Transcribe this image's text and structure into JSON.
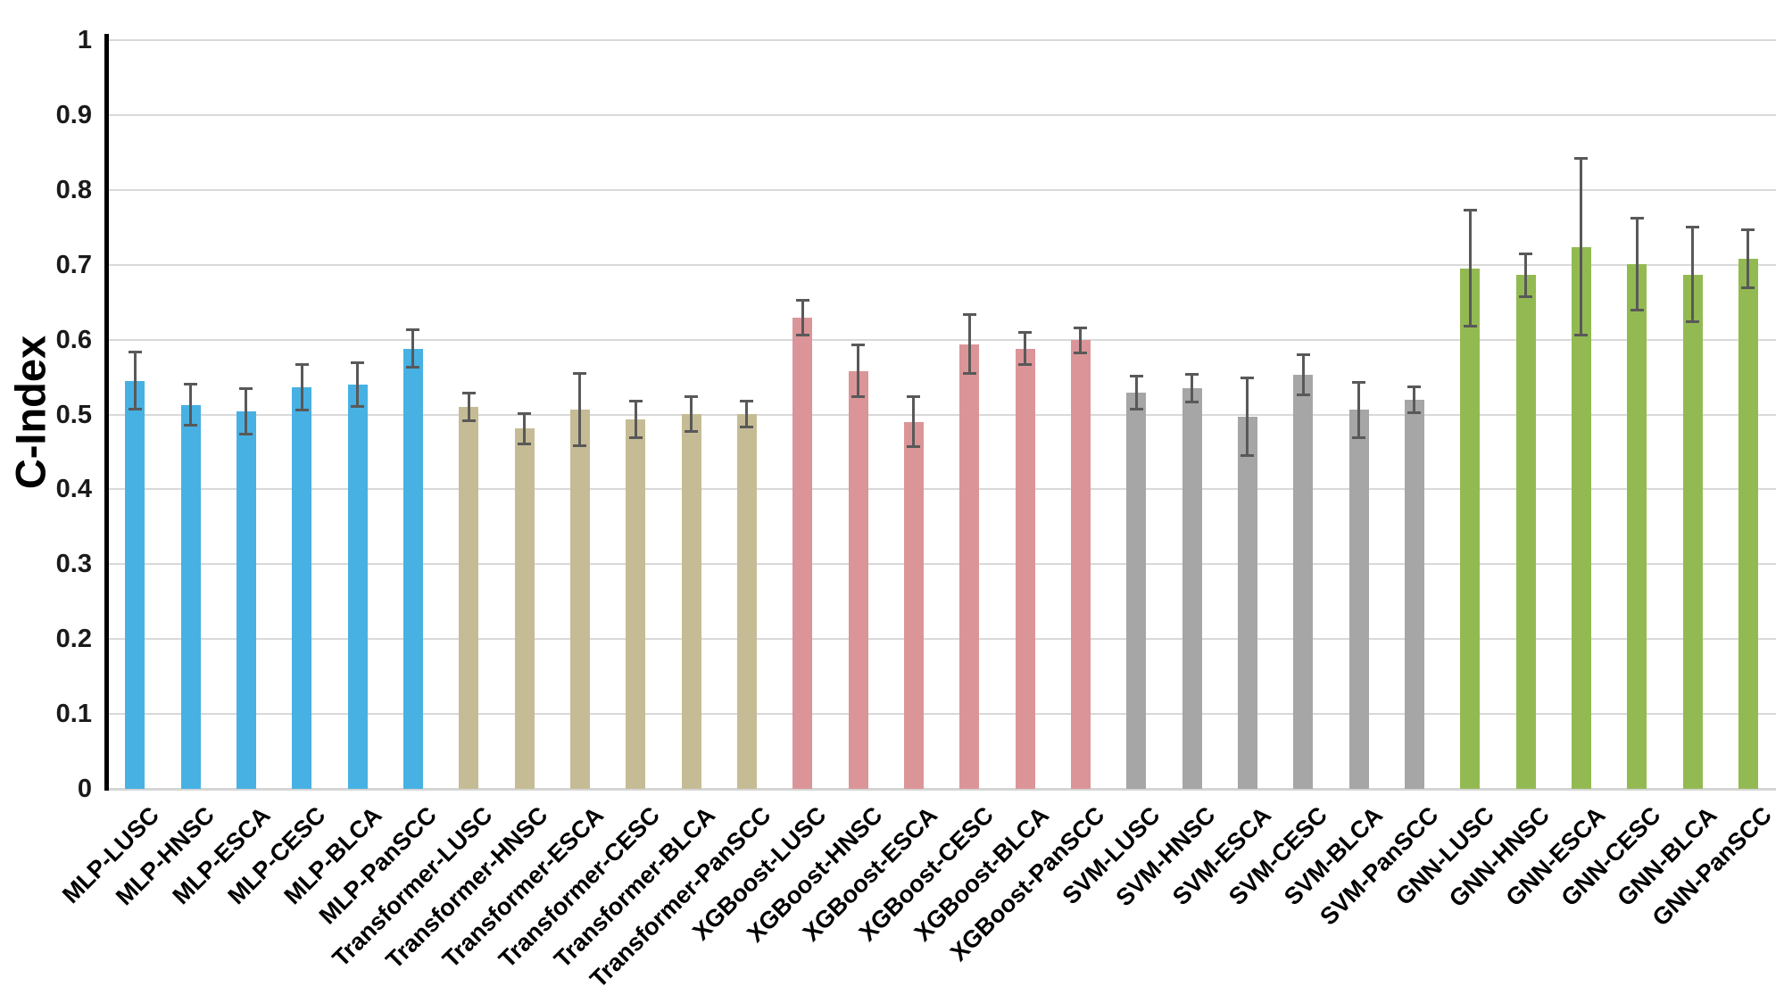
{
  "chart_data": {
    "type": "bar",
    "ylabel": "C-Index",
    "ylim": [
      0,
      1
    ],
    "grid": true,
    "legend_position": "none",
    "error_bars": true,
    "colors": {
      "axis": "#000000",
      "gridline": "#d9d9d9",
      "error_bar": "#595959"
    },
    "yticks": [
      {
        "label": "1",
        "value": 1.0
      },
      {
        "label": "0.9",
        "value": 0.9
      },
      {
        "label": "0.8",
        "value": 0.8
      },
      {
        "label": "0.7",
        "value": 0.7
      },
      {
        "label": "0.6",
        "value": 0.6
      },
      {
        "label": "0.5",
        "value": 0.5
      },
      {
        "label": "0.4",
        "value": 0.4
      },
      {
        "label": "0.3",
        "value": 0.3
      },
      {
        "label": "0.2",
        "value": 0.2
      },
      {
        "label": "0.1",
        "value": 0.1
      },
      {
        "label": "0",
        "value": 0.0
      }
    ],
    "groups": [
      {
        "name": "MLP",
        "color": "#47b1e3",
        "categories": [
          "MLP-LUSC",
          "MLP-HNSC",
          "MLP-ESCA",
          "MLP-CESC",
          "MLP-BLCA",
          "MLP-PanSCC"
        ],
        "values": [
          0.545,
          0.513,
          0.504,
          0.536,
          0.54,
          0.588
        ],
        "errors": [
          0.039,
          0.028,
          0.031,
          0.031,
          0.03,
          0.026
        ]
      },
      {
        "name": "Transformer",
        "color": "#c5bc95",
        "categories": [
          "Transformer-LUSC",
          "Transformer-HNSC",
          "Transformer-ESCA",
          "Transformer-CESC",
          "Transformer-BLCA",
          "Transformer-PanSCC"
        ],
        "values": [
          0.51,
          0.481,
          0.507,
          0.493,
          0.501,
          0.501
        ],
        "errors": [
          0.019,
          0.021,
          0.049,
          0.025,
          0.024,
          0.018
        ]
      },
      {
        "name": "XGBoost",
        "color": "#db9598",
        "categories": [
          "XGBoost-LUSC",
          "XGBoost-HNSC",
          "XGBoost-ESCA",
          "XGBoost-CESC",
          "XGBoost-BLCA",
          "XGBoost-PanSCC"
        ],
        "values": [
          0.629,
          0.558,
          0.49,
          0.594,
          0.588,
          0.599
        ],
        "errors": [
          0.024,
          0.035,
          0.034,
          0.04,
          0.022,
          0.017
        ]
      },
      {
        "name": "SVM",
        "color": "#a6a6a6",
        "categories": [
          "SVM-LUSC",
          "SVM-HNSC",
          "SVM-ESCA",
          "SVM-CESC",
          "SVM-BLCA",
          "SVM-PanSCC"
        ],
        "values": [
          0.529,
          0.535,
          0.497,
          0.553,
          0.506,
          0.52
        ],
        "errors": [
          0.023,
          0.019,
          0.053,
          0.027,
          0.037,
          0.018
        ]
      },
      {
        "name": "GNN",
        "color": "#93ba52",
        "categories": [
          "GNN-LUSC",
          "GNN-HNSC",
          "GNN-ESCA",
          "GNN-CESC",
          "GNN-BLCA",
          "GNN-PanSCC"
        ],
        "values": [
          0.695,
          0.686,
          0.724,
          0.701,
          0.687,
          0.708
        ],
        "errors": [
          0.078,
          0.029,
          0.119,
          0.062,
          0.064,
          0.039
        ]
      }
    ]
  }
}
